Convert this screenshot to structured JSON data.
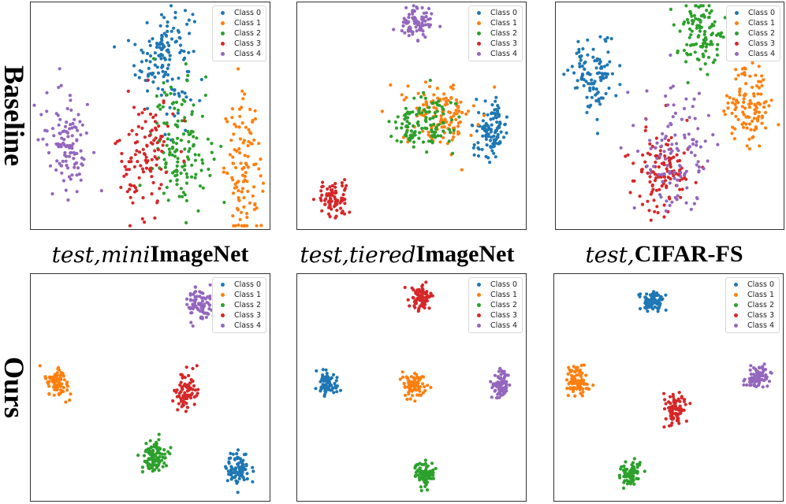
{
  "row_labels": [
    "Baseline",
    "Ours"
  ],
  "captions": [
    {
      "prefix": "test, ",
      "italic": "mini",
      "bold": "ImageNet"
    },
    {
      "prefix": "test, ",
      "italic": "tiered",
      "bold": "ImageNet"
    },
    {
      "prefix": "test, ",
      "italic": "",
      "bold": "CIFAR-FS"
    }
  ],
  "colors": [
    "#1f77b4",
    "#ff7f0e",
    "#2ca02c",
    "#d62728",
    "#9467bd"
  ],
  "chart_data": [
    {
      "type": "scatter",
      "dataset": "miniImageNet",
      "method": "Baseline",
      "series": [
        {
          "name": "Class 0",
          "cx": 0.56,
          "cy": 0.76,
          "sx": 0.06,
          "sy": 0.12,
          "n": 140
        },
        {
          "name": "Class 1",
          "cx": 0.89,
          "cy": 0.26,
          "sx": 0.04,
          "sy": 0.15,
          "n": 110
        },
        {
          "name": "Class 2",
          "cx": 0.63,
          "cy": 0.37,
          "sx": 0.06,
          "sy": 0.14,
          "n": 140
        },
        {
          "name": "Class 3",
          "cx": 0.48,
          "cy": 0.32,
          "sx": 0.06,
          "sy": 0.14,
          "n": 110
        },
        {
          "name": "Class 4",
          "cx": 0.15,
          "cy": 0.4,
          "sx": 0.05,
          "sy": 0.11,
          "n": 110
        }
      ]
    },
    {
      "type": "scatter",
      "dataset": "tieredImageNet",
      "method": "Baseline",
      "series": [
        {
          "name": "Class 0",
          "cx": 0.85,
          "cy": 0.44,
          "sx": 0.035,
          "sy": 0.06,
          "n": 110
        },
        {
          "name": "Class 1",
          "cx": 0.62,
          "cy": 0.51,
          "sx": 0.08,
          "sy": 0.07,
          "n": 130
        },
        {
          "name": "Class 2",
          "cx": 0.54,
          "cy": 0.46,
          "sx": 0.07,
          "sy": 0.06,
          "n": 120
        },
        {
          "name": "Class 3",
          "cx": 0.16,
          "cy": 0.13,
          "sx": 0.035,
          "sy": 0.035,
          "n": 80
        },
        {
          "name": "Class 4",
          "cx": 0.52,
          "cy": 0.91,
          "sx": 0.035,
          "sy": 0.045,
          "n": 80
        }
      ]
    },
    {
      "type": "scatter",
      "dataset": "CIFAR-FS",
      "method": "Baseline",
      "series": [
        {
          "name": "Class 0",
          "cx": 0.17,
          "cy": 0.68,
          "sx": 0.05,
          "sy": 0.08,
          "n": 110
        },
        {
          "name": "Class 1",
          "cx": 0.85,
          "cy": 0.55,
          "sx": 0.05,
          "sy": 0.09,
          "n": 110
        },
        {
          "name": "Class 2",
          "cx": 0.64,
          "cy": 0.86,
          "sx": 0.05,
          "sy": 0.08,
          "n": 110
        },
        {
          "name": "Class 3",
          "cx": 0.47,
          "cy": 0.26,
          "sx": 0.06,
          "sy": 0.09,
          "n": 120
        },
        {
          "name": "Class 4",
          "cx": 0.52,
          "cy": 0.34,
          "sx": 0.08,
          "sy": 0.13,
          "n": 110
        }
      ]
    },
    {
      "type": "scatter",
      "dataset": "miniImageNet",
      "method": "Ours",
      "series": [
        {
          "name": "Class 0",
          "cx": 0.87,
          "cy": 0.14,
          "sx": 0.025,
          "sy": 0.04,
          "n": 80
        },
        {
          "name": "Class 1",
          "cx": 0.11,
          "cy": 0.52,
          "sx": 0.025,
          "sy": 0.035,
          "n": 80
        },
        {
          "name": "Class 2",
          "cx": 0.52,
          "cy": 0.2,
          "sx": 0.03,
          "sy": 0.035,
          "n": 100
        },
        {
          "name": "Class 3",
          "cx": 0.65,
          "cy": 0.49,
          "sx": 0.025,
          "sy": 0.05,
          "n": 80
        },
        {
          "name": "Class 4",
          "cx": 0.7,
          "cy": 0.86,
          "sx": 0.025,
          "sy": 0.04,
          "n": 80
        }
      ]
    },
    {
      "type": "scatter",
      "dataset": "tieredImageNet",
      "method": "Ours",
      "series": [
        {
          "name": "Class 0",
          "cx": 0.13,
          "cy": 0.52,
          "sx": 0.022,
          "sy": 0.028,
          "n": 80
        },
        {
          "name": "Class 1",
          "cx": 0.51,
          "cy": 0.51,
          "sx": 0.022,
          "sy": 0.025,
          "n": 80
        },
        {
          "name": "Class 2",
          "cx": 0.56,
          "cy": 0.12,
          "sx": 0.022,
          "sy": 0.028,
          "n": 80
        },
        {
          "name": "Class 3",
          "cx": 0.54,
          "cy": 0.9,
          "sx": 0.022,
          "sy": 0.028,
          "n": 80
        },
        {
          "name": "Class 4",
          "cx": 0.89,
          "cy": 0.51,
          "sx": 0.02,
          "sy": 0.03,
          "n": 80
        }
      ]
    },
    {
      "type": "scatter",
      "dataset": "CIFAR-FS",
      "method": "Ours",
      "series": [
        {
          "name": "Class 0",
          "cx": 0.43,
          "cy": 0.88,
          "sx": 0.025,
          "sy": 0.025,
          "n": 80
        },
        {
          "name": "Class 1",
          "cx": 0.1,
          "cy": 0.53,
          "sx": 0.022,
          "sy": 0.035,
          "n": 80
        },
        {
          "name": "Class 2",
          "cx": 0.33,
          "cy": 0.12,
          "sx": 0.022,
          "sy": 0.028,
          "n": 80
        },
        {
          "name": "Class 3",
          "cx": 0.53,
          "cy": 0.4,
          "sx": 0.025,
          "sy": 0.035,
          "n": 80
        },
        {
          "name": "Class 4",
          "cx": 0.89,
          "cy": 0.54,
          "sx": 0.025,
          "sy": 0.025,
          "n": 80
        }
      ]
    }
  ]
}
